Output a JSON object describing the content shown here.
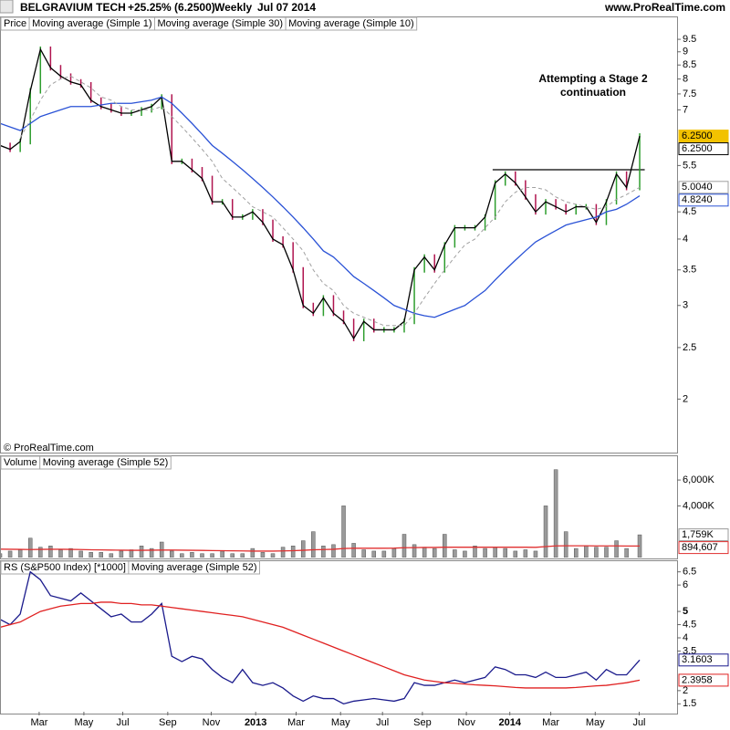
{
  "header": {
    "symbol": "BELGRAVIUM TECH",
    "change": "+25.25% (6.2500)",
    "period": "Weekly",
    "date": "Jul 07 2014",
    "site": "www.ProRealTime.com"
  },
  "copyright": "© ProRealTime.com",
  "chart_data": [
    {
      "type": "line",
      "log_scale": true,
      "ylim": [
        1.58,
        9.77
      ],
      "yticks": [
        2,
        2.5,
        3,
        3.5,
        4,
        4.5,
        5.5,
        7,
        7.5,
        8,
        8.5,
        9,
        9.5
      ],
      "x": [
        0,
        2,
        4,
        6,
        8,
        10,
        12,
        14,
        16,
        18,
        20,
        22,
        24,
        26,
        28,
        30,
        32,
        34,
        36,
        38,
        40,
        42,
        44,
        46,
        48,
        50,
        52,
        54,
        56,
        58,
        60,
        62,
        64,
        66,
        68,
        70,
        72,
        74,
        76,
        78,
        80,
        82,
        84,
        86,
        88,
        90,
        92,
        94,
        96,
        98,
        100,
        102,
        104,
        106,
        108,
        110,
        112,
        114,
        116,
        118,
        120,
        122,
        124,
        126.6
      ],
      "annotation": [
        "Attempting a Stage 2",
        "continuation"
      ],
      "trend_line": {
        "y": 5.4,
        "x": [
          97.5,
          127.6
        ]
      },
      "series": [
        {
          "name": "Price",
          "type": "bar",
          "color": "#000000",
          "up_color": "#2e9e2e",
          "down_color": "#b0144f",
          "last_label": "6.2500",
          "last_label_fill": "#f2c200",
          "values": [
            6.0,
            5.9,
            6.1,
            7.6,
            9.1,
            8.4,
            8.1,
            7.9,
            7.8,
            7.3,
            7.1,
            7.0,
            6.9,
            6.9,
            7.0,
            7.1,
            7.4,
            5.6,
            5.6,
            5.4,
            5.2,
            4.7,
            4.7,
            4.4,
            4.4,
            4.5,
            4.3,
            4.0,
            3.9,
            3.5,
            3.0,
            2.9,
            3.1,
            2.9,
            2.8,
            2.6,
            2.8,
            2.7,
            2.7,
            2.7,
            2.8,
            3.5,
            3.7,
            3.5,
            3.9,
            4.2,
            4.2,
            4.2,
            4.4,
            5.1,
            5.3,
            5.1,
            4.8,
            4.5,
            4.7,
            4.6,
            4.5,
            4.6,
            4.6,
            4.3,
            4.7,
            5.3,
            5.0,
            6.25
          ]
        },
        {
          "name": "Moving average (Simple 1)",
          "type": "line",
          "color": "#000000",
          "last_label": "6.2500",
          "values": [
            6.0,
            5.9,
            6.1,
            7.6,
            9.1,
            8.4,
            8.1,
            7.9,
            7.8,
            7.3,
            7.1,
            7.0,
            6.9,
            6.9,
            7.0,
            7.1,
            7.4,
            5.6,
            5.6,
            5.4,
            5.2,
            4.7,
            4.7,
            4.4,
            4.4,
            4.5,
            4.3,
            4.0,
            3.9,
            3.5,
            3.0,
            2.9,
            3.1,
            2.9,
            2.8,
            2.6,
            2.8,
            2.7,
            2.7,
            2.7,
            2.8,
            3.5,
            3.7,
            3.5,
            3.9,
            4.2,
            4.2,
            4.2,
            4.4,
            5.1,
            5.3,
            5.1,
            4.8,
            4.5,
            4.7,
            4.6,
            4.5,
            4.6,
            4.6,
            4.3,
            4.7,
            5.3,
            5.0,
            6.25
          ]
        },
        {
          "name": "Moving average (Simple 30)",
          "type": "line",
          "color": "#2a52d6",
          "last_label": "4.8240",
          "values": [
            6.6,
            6.5,
            6.4,
            6.6,
            6.8,
            6.9,
            7.0,
            7.1,
            7.1,
            7.1,
            7.15,
            7.2,
            7.2,
            7.2,
            7.25,
            7.3,
            7.4,
            7.2,
            6.9,
            6.6,
            6.3,
            6.0,
            5.8,
            5.6,
            5.4,
            5.2,
            5.0,
            4.8,
            4.6,
            4.4,
            4.2,
            4.0,
            3.8,
            3.7,
            3.55,
            3.4,
            3.3,
            3.2,
            3.1,
            3.0,
            2.95,
            2.9,
            2.87,
            2.85,
            2.9,
            2.95,
            3.0,
            3.1,
            3.2,
            3.35,
            3.5,
            3.65,
            3.8,
            3.95,
            4.05,
            4.15,
            4.25,
            4.3,
            4.35,
            4.4,
            4.5,
            4.55,
            4.65,
            4.824
          ]
        },
        {
          "name": "Moving average (Simple 10)",
          "type": "line",
          "color": "#a0a0a0",
          "dashed": true,
          "last_label": "5.0040",
          "values": [
            null,
            null,
            6.2,
            6.7,
            7.3,
            7.8,
            8.0,
            8.1,
            7.9,
            7.7,
            7.4,
            7.3,
            7.1,
            7.0,
            7.0,
            7.0,
            7.1,
            6.8,
            6.5,
            6.2,
            5.9,
            5.6,
            5.2,
            5.0,
            4.8,
            4.6,
            4.5,
            4.4,
            4.2,
            4.0,
            3.8,
            3.5,
            3.3,
            3.2,
            3.0,
            2.9,
            2.85,
            2.8,
            2.75,
            2.75,
            2.75,
            2.9,
            3.1,
            3.3,
            3.5,
            3.7,
            3.9,
            4.0,
            4.2,
            4.4,
            4.7,
            4.9,
            5.0,
            5.0,
            4.95,
            4.8,
            4.7,
            4.65,
            4.6,
            4.55,
            4.6,
            4.75,
            4.85,
            5.004
          ]
        }
      ]
    },
    {
      "type": "bar",
      "ylim": [
        0,
        7700000
      ],
      "yticks": [
        {
          "value": 4000000,
          "label": "4,000K"
        },
        {
          "value": 6000000,
          "label": "6,000K"
        }
      ],
      "series": [
        {
          "name": "Volume",
          "type": "bar",
          "color": "#9a9a9a",
          "last_label": "1,759K",
          "values": [
            300000,
            500000,
            600000,
            1500000,
            800000,
            900000,
            600000,
            700000,
            500000,
            400000,
            400000,
            300000,
            500000,
            600000,
            900000,
            700000,
            1200000,
            500000,
            300000,
            400000,
            300000,
            300000,
            500000,
            300000,
            300000,
            700000,
            400000,
            300000,
            800000,
            900000,
            1300000,
            2000000,
            900000,
            1000000,
            4000000,
            1100000,
            600000,
            500000,
            500000,
            700000,
            1800000,
            1000000,
            800000,
            700000,
            1800000,
            600000,
            500000,
            900000,
            700000,
            800000,
            700000,
            500000,
            600000,
            500000,
            4000000,
            6800000,
            2000000,
            700000,
            900000,
            800000,
            800000,
            1300000,
            700000,
            1759000
          ]
        },
        {
          "name": "Moving average (Simple 52)",
          "type": "line",
          "color": "#e03030",
          "last_label": "894,607",
          "values": [
            650000,
            640000,
            630000,
            620000,
            630000,
            640000,
            640000,
            630000,
            620000,
            600000,
            590000,
            580000,
            570000,
            560000,
            560000,
            570000,
            580000,
            580000,
            570000,
            560000,
            550000,
            540000,
            530000,
            520000,
            510000,
            500000,
            500000,
            500000,
            510000,
            530000,
            560000,
            600000,
            620000,
            640000,
            700000,
            720000,
            720000,
            720000,
            720000,
            730000,
            760000,
            770000,
            780000,
            780000,
            800000,
            800000,
            800000,
            800000,
            800000,
            800000,
            800000,
            800000,
            800000,
            790000,
            850000,
            900000,
            910000,
            910000,
            910000,
            900000,
            900000,
            900000,
            890000,
            894607
          ]
        }
      ]
    },
    {
      "type": "line",
      "ylim": [
        1.2,
        6.8
      ],
      "xlim": [
        0,
        134
      ],
      "yticks": [
        1.5,
        2,
        3.5,
        4,
        4.5,
        5,
        6,
        6.5
      ],
      "xticks": [
        {
          "value": 7.75,
          "label": "Mar"
        },
        {
          "value": 16.6,
          "label": "May"
        },
        {
          "value": 24.3,
          "label": "Jul"
        },
        {
          "value": 33.2,
          "label": "Sep"
        },
        {
          "value": 41.8,
          "label": "Nov"
        },
        {
          "value": 50.6,
          "label": "2013"
        },
        {
          "value": 58.6,
          "label": "Mar"
        },
        {
          "value": 67.4,
          "label": "May"
        },
        {
          "value": 75.7,
          "label": "Jul"
        },
        {
          "value": 83.6,
          "label": "Sep"
        },
        {
          "value": 92.3,
          "label": "Nov"
        },
        {
          "value": 100.9,
          "label": "2014"
        },
        {
          "value": 109,
          "label": "Mar"
        },
        {
          "value": 117.8,
          "label": "May"
        },
        {
          "value": 126.5,
          "label": "Jul"
        }
      ],
      "series": [
        {
          "name": "RS (S&P500 Index) [*1000]",
          "type": "line",
          "color": "#1a1a8c",
          "last_label": "3.1603",
          "values": [
            4.7,
            4.5,
            4.9,
            6.5,
            6.2,
            5.6,
            5.5,
            5.4,
            5.7,
            5.4,
            5.1,
            4.8,
            4.9,
            4.6,
            4.6,
            4.9,
            5.3,
            3.3,
            3.1,
            3.3,
            3.2,
            2.8,
            2.5,
            2.3,
            2.8,
            2.3,
            2.2,
            2.3,
            2.1,
            1.8,
            1.6,
            1.8,
            1.7,
            1.7,
            1.5,
            1.6,
            1.65,
            1.7,
            1.65,
            1.6,
            1.7,
            2.3,
            2.2,
            2.2,
            2.3,
            2.4,
            2.3,
            2.4,
            2.5,
            2.9,
            2.8,
            2.6,
            2.6,
            2.5,
            2.7,
            2.5,
            2.5,
            2.6,
            2.7,
            2.4,
            2.8,
            2.6,
            2.6,
            3.1603
          ]
        },
        {
          "name": "Moving average (Simple 52)",
          "type": "line",
          "color": "#e02020",
          "last_label": "2.3958",
          "values": [
            4.4,
            4.5,
            4.6,
            4.8,
            5.0,
            5.1,
            5.2,
            5.25,
            5.3,
            5.3,
            5.35,
            5.35,
            5.3,
            5.3,
            5.25,
            5.25,
            5.2,
            5.15,
            5.1,
            5.05,
            5.0,
            4.95,
            4.9,
            4.85,
            4.8,
            4.7,
            4.6,
            4.5,
            4.4,
            4.25,
            4.1,
            3.95,
            3.8,
            3.65,
            3.5,
            3.35,
            3.2,
            3.05,
            2.9,
            2.75,
            2.6,
            2.5,
            2.4,
            2.35,
            2.3,
            2.28,
            2.25,
            2.22,
            2.2,
            2.18,
            2.15,
            2.12,
            2.1,
            2.1,
            2.1,
            2.1,
            2.1,
            2.12,
            2.15,
            2.18,
            2.2,
            2.25,
            2.3,
            2.3958
          ]
        }
      ]
    }
  ]
}
